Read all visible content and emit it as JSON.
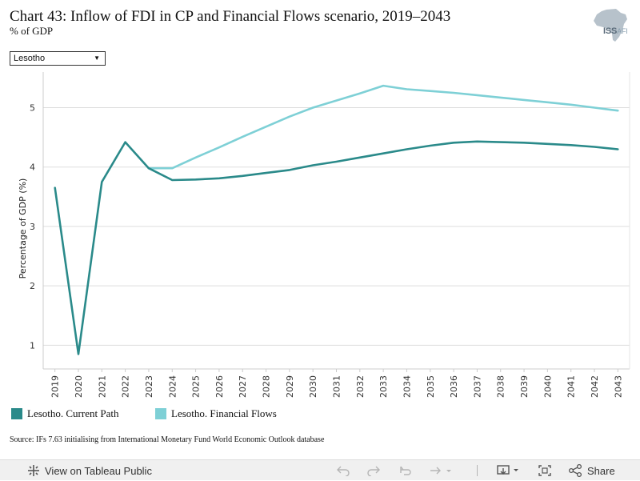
{
  "header": {
    "title": "Chart 43: Inflow of FDI in CP and Financial Flows scenario, 2019–2043",
    "subtitle": "% of GDP"
  },
  "logo": {
    "text": "ISS",
    "suffix": "AFI"
  },
  "filter": {
    "selected": "Lesotho"
  },
  "chart_data": {
    "type": "line",
    "title": "Chart 43: Inflow of FDI in CP and Financial Flows scenario, 2019–2043",
    "subtitle": "% of GDP",
    "ylabel": "Percentage of GDP (%)",
    "xlabel": "",
    "ylim": [
      0.6,
      5.6
    ],
    "yticks": [
      1,
      2,
      3,
      4,
      5
    ],
    "grid": true,
    "x": [
      "2019",
      "2020",
      "2021",
      "2022",
      "2023",
      "2024",
      "2025",
      "2026",
      "2027",
      "2028",
      "2029",
      "2030",
      "2031",
      "2032",
      "2033",
      "2034",
      "2035",
      "2036",
      "2037",
      "2038",
      "2039",
      "2040",
      "2041",
      "2042",
      "2043"
    ],
    "series": [
      {
        "name": "Lesotho. Current Path",
        "color": "#2a8a8a",
        "values": [
          3.65,
          0.85,
          3.75,
          4.42,
          3.98,
          3.78,
          3.79,
          3.81,
          3.85,
          3.9,
          3.95,
          4.03,
          4.09,
          4.16,
          4.23,
          4.3,
          4.36,
          4.41,
          4.43,
          4.42,
          4.41,
          4.39,
          4.37,
          4.34,
          4.3
        ]
      },
      {
        "name": "Lesotho. Financial Flows",
        "color": "#7ed0d6",
        "values": [
          null,
          null,
          null,
          null,
          3.98,
          3.98,
          4.16,
          4.33,
          4.51,
          4.68,
          4.85,
          5.0,
          5.12,
          5.24,
          5.37,
          5.31,
          5.28,
          5.25,
          5.21,
          5.17,
          5.13,
          5.09,
          5.05,
          5.0,
          4.95
        ]
      }
    ],
    "legend_position": "bottom-left"
  },
  "source": "Source: IFs 7.63 initialising from International Monetary Fund World Economic Outlook database",
  "footer": {
    "view_label": "View on Tableau Public",
    "share_label": "Share"
  }
}
